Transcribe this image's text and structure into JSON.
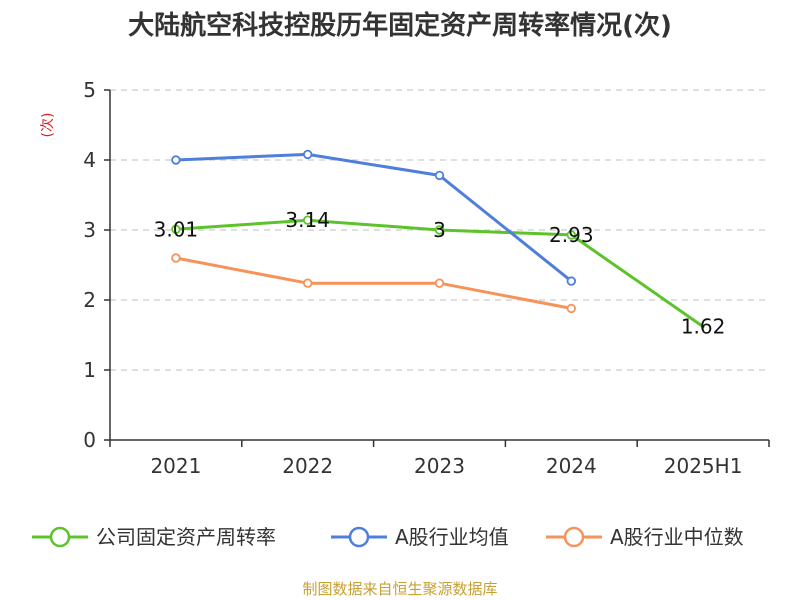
{
  "chart_data": {
    "type": "line",
    "title": "大陆航空科技控股历年固定资产周转率情况(次)",
    "xlabel": "",
    "ylabel": "(次)",
    "ylim": [
      0,
      5
    ],
    "yticks": [
      "0",
      "1",
      "2",
      "3",
      "4",
      "5"
    ],
    "categories": [
      "2021",
      "2022",
      "2023",
      "2024",
      "2025H1"
    ],
    "grid": true,
    "legend_position": "bottom",
    "series": [
      {
        "name": "公司固定资产周转率",
        "color": "#5cc42a",
        "values": [
          3.01,
          3.14,
          3,
          2.93,
          1.62
        ],
        "labels": [
          "3.01",
          "3.14",
          "3",
          "2.93",
          "1.62"
        ]
      },
      {
        "name": "A股行业均值",
        "color": "#4e7fdb",
        "values": [
          4.0,
          4.08,
          3.78,
          2.27,
          null
        ]
      },
      {
        "name": "A股行业中位数",
        "color": "#f5935a",
        "values": [
          2.6,
          2.24,
          2.24,
          1.88,
          null
        ]
      }
    ],
    "source": "制图数据来自恒生聚源数据库"
  }
}
